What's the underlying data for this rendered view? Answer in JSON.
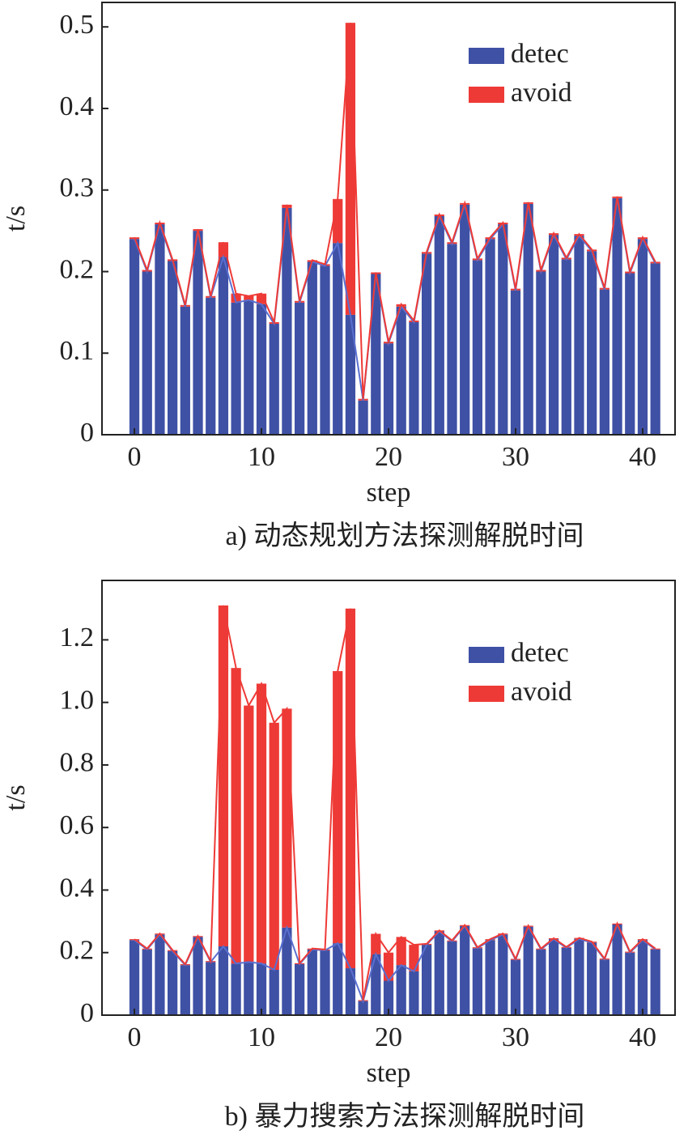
{
  "chart_data": [
    {
      "type": "bar",
      "stacked": true,
      "caption": "a) 动态规划方法探测解脱时间",
      "x_label": "step",
      "y_label": "t/s",
      "x": [
        0,
        1,
        2,
        3,
        4,
        5,
        6,
        7,
        8,
        9,
        10,
        11,
        12,
        13,
        14,
        15,
        16,
        17,
        18,
        19,
        20,
        21,
        22,
        23,
        24,
        25,
        26,
        27,
        28,
        29,
        30,
        31,
        32,
        33,
        34,
        35,
        36,
        37,
        38,
        39,
        40,
        41
      ],
      "series": [
        {
          "name": "detec",
          "color": "#3f51a5",
          "values": [
            0.24,
            0.2,
            0.258,
            0.213,
            0.157,
            0.25,
            0.168,
            0.218,
            0.162,
            0.165,
            0.16,
            0.136,
            0.278,
            0.162,
            0.212,
            0.207,
            0.235,
            0.147,
            0.042,
            0.197,
            0.112,
            0.157,
            0.138,
            0.222,
            0.268,
            0.234,
            0.282,
            0.214,
            0.24,
            0.258,
            0.177,
            0.283,
            0.2,
            0.245,
            0.215,
            0.244,
            0.225,
            0.178,
            0.29,
            0.198,
            0.24,
            0.21
          ]
        },
        {
          "name": "avoid",
          "color": "#ee3a36",
          "values": [
            0.002,
            0.002,
            0.002,
            0.002,
            0.002,
            0.002,
            0.002,
            0.018,
            0.011,
            0.005,
            0.013,
            0.002,
            0.004,
            0.002,
            0.002,
            0.002,
            0.054,
            0.358,
            0.002,
            0.002,
            0.002,
            0.003,
            0.002,
            0.002,
            0.002,
            0.002,
            0.002,
            0.002,
            0.002,
            0.002,
            0.002,
            0.002,
            0.002,
            0.002,
            0.002,
            0.002,
            0.002,
            0.002,
            0.002,
            0.002,
            0.002,
            0.002
          ]
        }
      ],
      "xlim": [
        -2.55,
        42.55
      ],
      "xticks": [
        0,
        10,
        20,
        30,
        40
      ],
      "ylim": [
        0,
        0.53
      ],
      "yticks": [
        0,
        0.1,
        0.2,
        0.3,
        0.4,
        0.5
      ],
      "legend": "upper right"
    },
    {
      "type": "bar",
      "stacked": true,
      "caption": "b) 暴力搜索方法探测解脱时间",
      "x_label": "step",
      "y_label": "t/s",
      "x": [
        0,
        1,
        2,
        3,
        4,
        5,
        6,
        7,
        8,
        9,
        10,
        11,
        12,
        13,
        14,
        15,
        16,
        17,
        18,
        19,
        20,
        21,
        22,
        23,
        24,
        25,
        26,
        27,
        28,
        29,
        30,
        31,
        32,
        33,
        34,
        35,
        36,
        37,
        38,
        39,
        40,
        41
      ],
      "series": [
        {
          "name": "detec",
          "color": "#3f51a5",
          "values": [
            0.24,
            0.21,
            0.258,
            0.205,
            0.16,
            0.25,
            0.17,
            0.22,
            0.165,
            0.17,
            0.165,
            0.145,
            0.28,
            0.163,
            0.21,
            0.207,
            0.23,
            0.15,
            0.045,
            0.195,
            0.11,
            0.16,
            0.14,
            0.225,
            0.268,
            0.236,
            0.285,
            0.214,
            0.24,
            0.258,
            0.177,
            0.283,
            0.21,
            0.243,
            0.215,
            0.244,
            0.232,
            0.178,
            0.29,
            0.2,
            0.24,
            0.21
          ]
        },
        {
          "name": "avoid",
          "color": "#ee3a36",
          "values": [
            0.003,
            0.003,
            0.003,
            0.003,
            0.003,
            0.003,
            0.003,
            1.09,
            0.945,
            0.82,
            0.895,
            0.79,
            0.7,
            0.003,
            0.003,
            0.003,
            0.87,
            1.15,
            0.003,
            0.065,
            0.09,
            0.09,
            0.085,
            0.003,
            0.003,
            0.003,
            0.003,
            0.003,
            0.003,
            0.003,
            0.003,
            0.003,
            0.003,
            0.003,
            0.003,
            0.003,
            0.003,
            0.003,
            0.003,
            0.003,
            0.003,
            0.003
          ]
        }
      ],
      "xlim": [
        -2.55,
        42.55
      ],
      "xticks": [
        0,
        10,
        20,
        30,
        40
      ],
      "ylim": [
        0,
        1.39
      ],
      "yticks": [
        0,
        0.2,
        0.4,
        0.6,
        0.8,
        {
          "value": 1,
          "label": "1.0"
        },
        1.2
      ],
      "legend": "upper right"
    }
  ]
}
